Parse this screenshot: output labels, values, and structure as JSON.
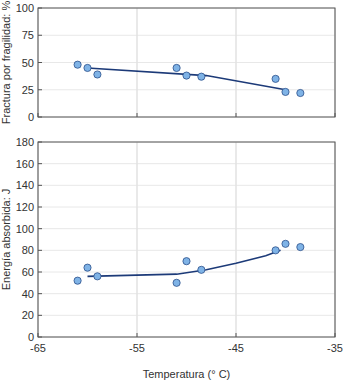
{
  "chart_data": [
    {
      "type": "scatter",
      "y_label": "Fractura por fragilidad: %",
      "xlim": [
        -65,
        -35
      ],
      "xticks": [
        -65,
        -55,
        -45,
        -35
      ],
      "ylim": [
        0,
        100
      ],
      "yticks": [
        0,
        25,
        50,
        75,
        100
      ],
      "grid": true,
      "tick_labels": "y",
      "series": [
        {
          "type": "scatter",
          "marker": "circle",
          "color": "#7fb3e6",
          "x": [
            -61,
            -60,
            -59,
            -51,
            -50,
            -48.5,
            -41,
            -40,
            -38.5
          ],
          "values": [
            48,
            45,
            39,
            45,
            38,
            37,
            35,
            23,
            22
          ]
        },
        {
          "type": "line",
          "line_style": "solid",
          "color": "#1c3a78",
          "x": [
            -60,
            -48,
            -40
          ],
          "values": [
            45,
            38,
            25
          ]
        }
      ]
    },
    {
      "type": "scatter",
      "x_label": "Temperatura (° C)",
      "y_label": "Energía absorbida: J",
      "xlim": [
        -65,
        -35
      ],
      "xticks": [
        -65,
        -55,
        -45,
        -35
      ],
      "ylim": [
        0,
        180
      ],
      "yticks": [
        0,
        20,
        40,
        60,
        80,
        100,
        120,
        140,
        160,
        180
      ],
      "grid": true,
      "series": [
        {
          "type": "scatter",
          "marker": "circle",
          "color": "#7fb3e6",
          "x": [
            -61,
            -60,
            -59,
            -51,
            -50,
            -48.5,
            -41,
            -40,
            -38.5
          ],
          "values": [
            52,
            64,
            56,
            50,
            70,
            62,
            80,
            86,
            83
          ]
        },
        {
          "type": "line",
          "line_style": "solid",
          "color": "#1c3a78",
          "x": [
            -60,
            -51,
            -48,
            -45,
            -42,
            -40.5
          ],
          "values": [
            56,
            58,
            62,
            68,
            75,
            80
          ]
        }
      ]
    }
  ]
}
